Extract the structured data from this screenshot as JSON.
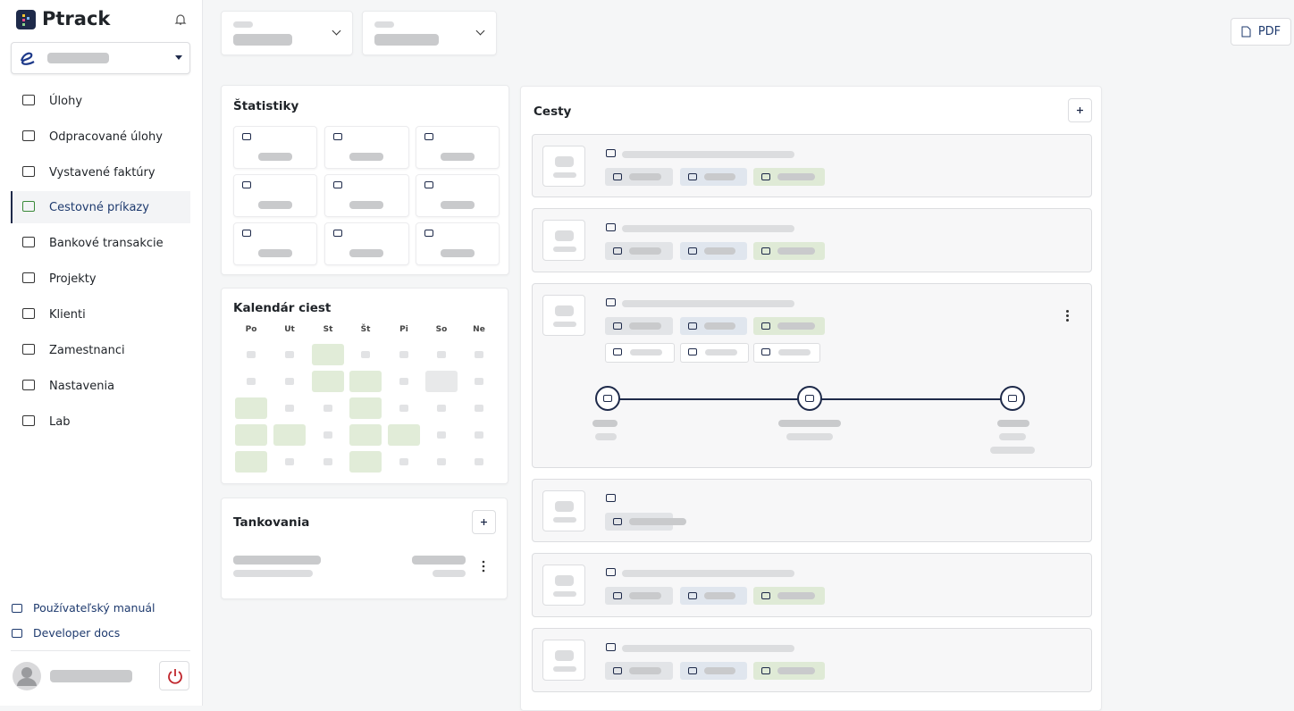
{
  "app": {
    "name": "Ptrack"
  },
  "sidebar": {
    "nav": [
      "Úlohy",
      "Odpracované úlohy",
      "Vystavené faktúry",
      "Cestovné príkazy",
      "Bankové transakcie",
      "Projekty",
      "Klienti",
      "Zamestnanci",
      "Nastavenia",
      "Lab"
    ],
    "footer_links": [
      "Používateľský manuál",
      "Developer docs"
    ]
  },
  "toolbar": {
    "pdf": "PDF"
  },
  "stats": {
    "title": "Štatistiky"
  },
  "calendar": {
    "title": "Kalendár ciest",
    "weekdays": [
      "Po",
      "Ut",
      "St",
      "Št",
      "Pi",
      "So",
      "Ne"
    ]
  },
  "fuel": {
    "title": "Tankovania"
  },
  "trips": {
    "title": "Cesty"
  }
}
